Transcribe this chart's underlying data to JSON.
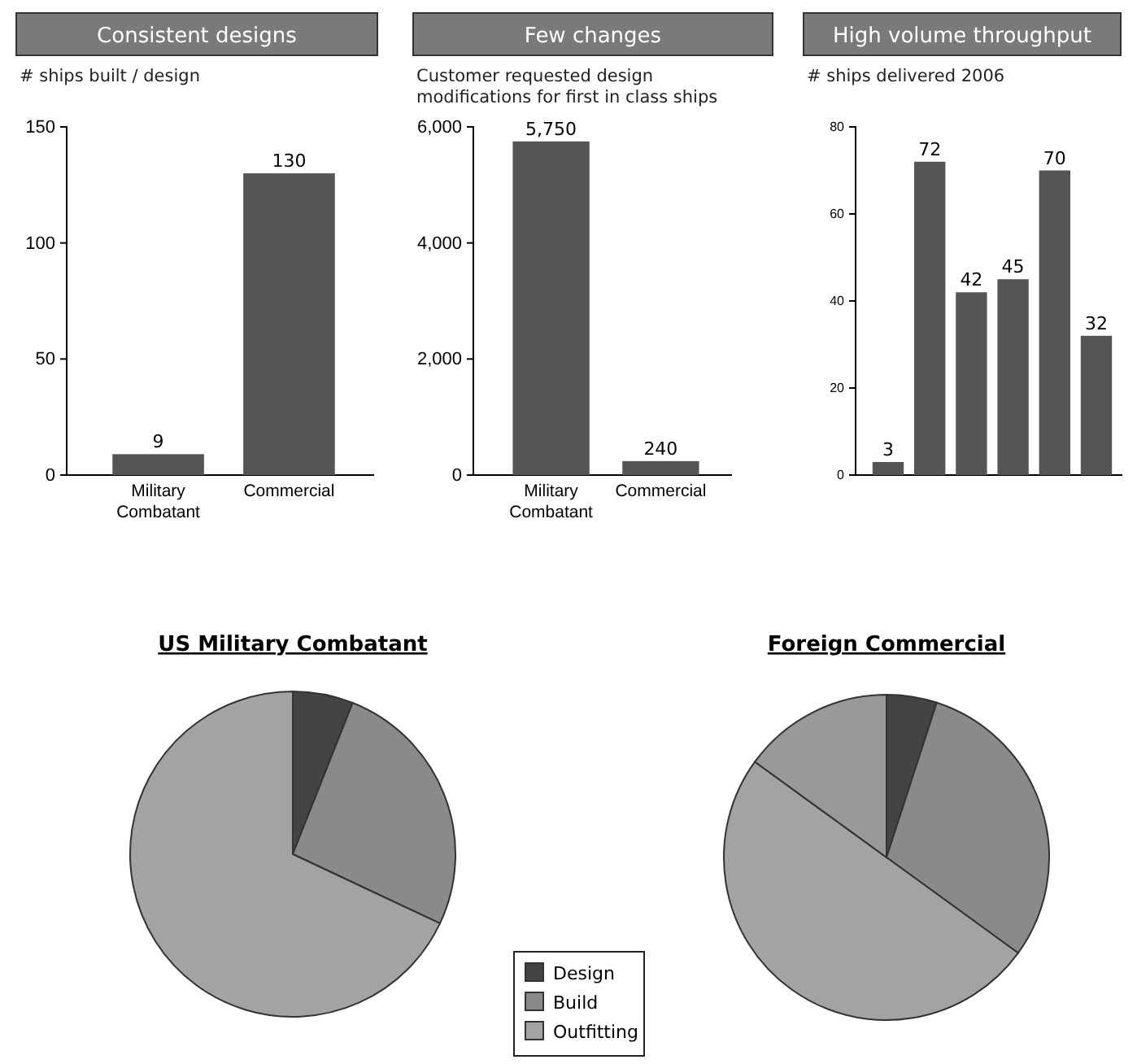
{
  "chart_data": [
    {
      "type": "bar",
      "title": "Consistent designs",
      "ylabel": "# ships built / design",
      "categories": [
        "Military Combatant",
        "Commercial"
      ],
      "values": [
        9,
        130
      ],
      "color": "#555555",
      "ylim": [
        0,
        150
      ],
      "yticks": [
        0,
        50,
        100,
        150
      ],
      "data_labels": true
    },
    {
      "type": "bar",
      "title": "Few changes",
      "ylabel": "Customer requested design modifications for first in class ships",
      "categories": [
        "Military Combatant",
        "Commercial"
      ],
      "values": [
        5750,
        240
      ],
      "value_labels": [
        "5,750",
        "240"
      ],
      "color": "#555555",
      "ylim": [
        0,
        6000
      ],
      "yticks": [
        0,
        {
          "value": 2000,
          "label": "2,000"
        },
        {
          "value": 4000,
          "label": "4,000"
        },
        {
          "value": 6000,
          "label": "6,000"
        }
      ]
    },
    {
      "type": "bar",
      "title": "High volume throughput",
      "ylabel": "# ships delivered 2006",
      "categories": [
        null,
        null,
        null,
        null,
        null,
        null
      ],
      "values": [
        3,
        72,
        42,
        45,
        70,
        32
      ],
      "color": "#555555",
      "ylim": [
        0,
        80
      ],
      "yticks": [
        0,
        20,
        40,
        60,
        80
      ],
      "data_labels": true
    },
    {
      "type": "pie",
      "title": "US Military Combatant",
      "categories": [
        "Design",
        "Build",
        "Outfitting"
      ],
      "values": [
        6,
        26,
        68
      ],
      "colors": [
        "#444444",
        "#8a8a8a",
        "#a3a3a3"
      ],
      "legend": "right"
    },
    {
      "type": "pie",
      "title": "Foreign Commercial",
      "categories": [
        null,
        null,
        null,
        null
      ],
      "values": [
        5,
        30,
        50,
        15
      ],
      "colors": [
        "#444444",
        "#8a8a8a",
        "#a3a3a3",
        "#999999"
      ]
    }
  ]
}
